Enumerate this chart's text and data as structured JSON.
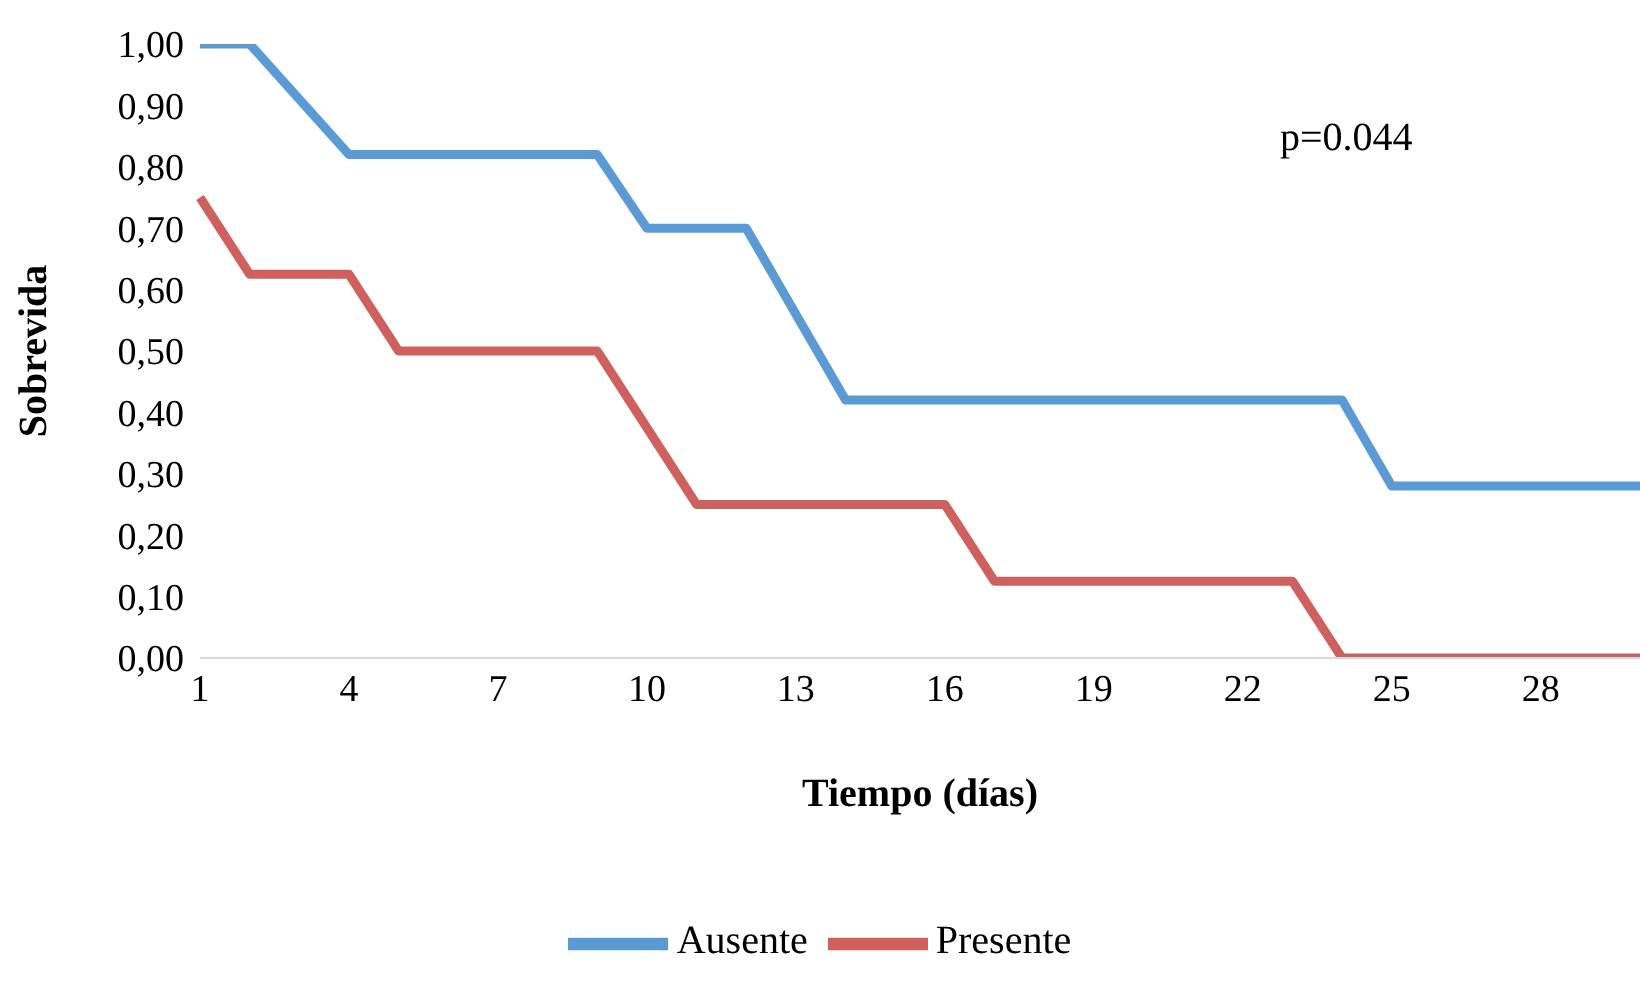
{
  "chart_data": {
    "type": "line",
    "xlabel": "Tiempo (días)",
    "ylabel": "Sobrevida",
    "categories": [
      "1",
      null,
      null,
      "4",
      null,
      null,
      "7",
      null,
      null,
      "10",
      null,
      null,
      "13",
      null,
      null,
      "16",
      null,
      null,
      "19",
      null,
      null,
      "22",
      null,
      null,
      "25",
      null,
      null,
      "28",
      null,
      null
    ],
    "series": [
      {
        "name": "Ausente",
        "color": "#5b9bd5",
        "values": [
          1,
          1,
          0.91,
          0.82,
          0.82,
          0.82,
          0.82,
          0.82,
          0.82,
          0.7,
          0.7,
          0.7,
          0.56,
          0.42,
          0.42,
          0.42,
          0.42,
          0.42,
          0.42,
          0.42,
          0.42,
          0.42,
          0.42,
          0.42,
          0.28,
          0.28,
          0.28,
          0.28,
          0.28,
          0.28
        ]
      },
      {
        "name": "Presente",
        "color": "#d0605e",
        "values": [
          0.75,
          0.625,
          0.625,
          0.625,
          0.5,
          0.5,
          0.5,
          0.5,
          0.5,
          0.375,
          0.25,
          0.25,
          0.25,
          0.25,
          0.25,
          0.25,
          0.125,
          0.125,
          0.125,
          0.125,
          0.125,
          0.125,
          0.125,
          0,
          0,
          0,
          0,
          0,
          0,
          0
        ]
      }
    ],
    "ylim": [
      0,
      1
    ],
    "yticks": [
      {
        "value": 0,
        "label": "0,00"
      },
      {
        "value": 0.1,
        "label": "0,10"
      },
      {
        "value": 0.2,
        "label": "0,20"
      },
      {
        "value": 0.3,
        "label": "0,30"
      },
      {
        "value": 0.4,
        "label": "0,40"
      },
      {
        "value": 0.5,
        "label": "0,50"
      },
      {
        "value": 0.6,
        "label": "0,60"
      },
      {
        "value": 0.7,
        "label": "0,70"
      },
      {
        "value": 0.8,
        "label": "0,80"
      },
      {
        "value": 0.9,
        "label": "0,90"
      },
      {
        "value": 1,
        "label": "1,00"
      }
    ],
    "annotations": [
      "p=0.044"
    ],
    "legend": "bottom",
    "grid": false,
    "marker": "none",
    "line_style": "solid"
  }
}
